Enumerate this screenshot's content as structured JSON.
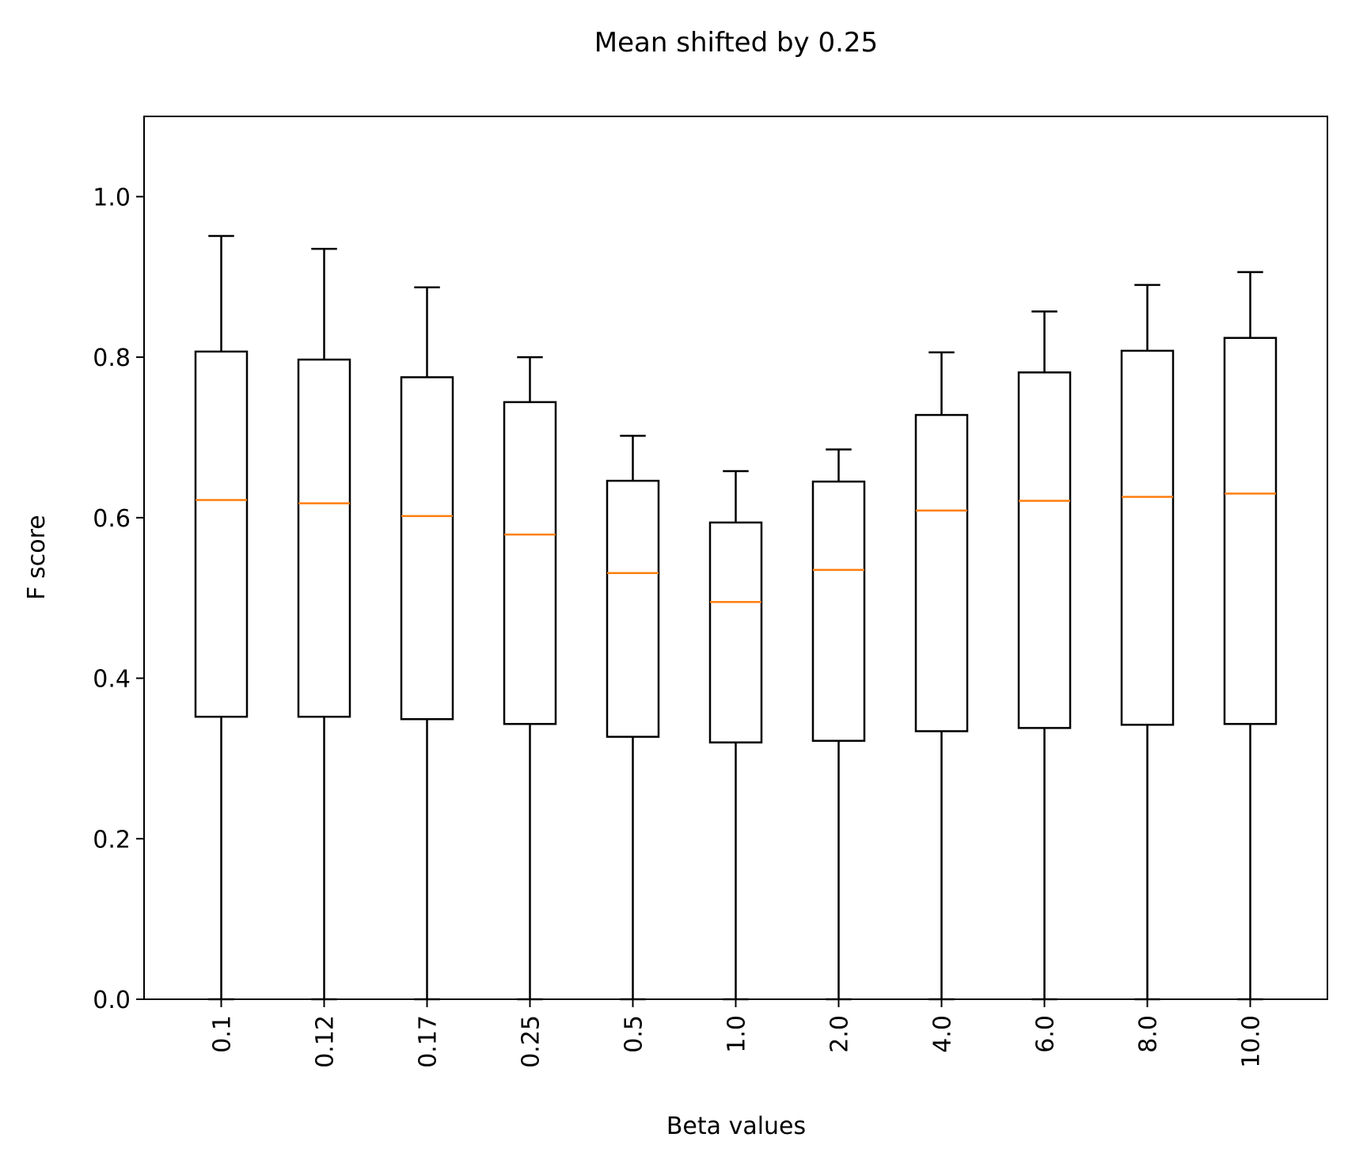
{
  "chart_data": {
    "type": "box",
    "title": "Mean shifted by 0.25",
    "xlabel": "Beta values",
    "ylabel": "F score",
    "ylim": [
      0.0,
      1.1
    ],
    "yticks": [
      "0.0",
      "0.2",
      "0.4",
      "0.6",
      "0.8",
      "1.0"
    ],
    "categories": [
      "0.1",
      "0.12",
      "0.17",
      "0.25",
      "0.5",
      "1.0",
      "2.0",
      "4.0",
      "6.0",
      "8.0",
      "10.0"
    ],
    "boxes": [
      {
        "whisker_low": 0.0,
        "q1": 0.352,
        "median": 0.622,
        "q3": 0.807,
        "whisker_high": 0.951
      },
      {
        "whisker_low": 0.0,
        "q1": 0.352,
        "median": 0.618,
        "q3": 0.797,
        "whisker_high": 0.935
      },
      {
        "whisker_low": 0.0,
        "q1": 0.349,
        "median": 0.602,
        "q3": 0.775,
        "whisker_high": 0.887
      },
      {
        "whisker_low": 0.0,
        "q1": 0.343,
        "median": 0.579,
        "q3": 0.744,
        "whisker_high": 0.8
      },
      {
        "whisker_low": 0.0,
        "q1": 0.327,
        "median": 0.531,
        "q3": 0.646,
        "whisker_high": 0.702
      },
      {
        "whisker_low": 0.0,
        "q1": 0.32,
        "median": 0.495,
        "q3": 0.594,
        "whisker_high": 0.658
      },
      {
        "whisker_low": 0.0,
        "q1": 0.322,
        "median": 0.535,
        "q3": 0.645,
        "whisker_high": 0.685
      },
      {
        "whisker_low": 0.0,
        "q1": 0.334,
        "median": 0.609,
        "q3": 0.728,
        "whisker_high": 0.806
      },
      {
        "whisker_low": 0.0,
        "q1": 0.338,
        "median": 0.621,
        "q3": 0.781,
        "whisker_high": 0.857
      },
      {
        "whisker_low": 0.0,
        "q1": 0.342,
        "median": 0.626,
        "q3": 0.808,
        "whisker_high": 0.89
      },
      {
        "whisker_low": 0.0,
        "q1": 0.343,
        "median": 0.63,
        "q3": 0.824,
        "whisker_high": 0.906
      }
    ],
    "colors": {
      "box": "#000000",
      "median": "#ff7f0e"
    },
    "grid": false,
    "legend": "none"
  }
}
